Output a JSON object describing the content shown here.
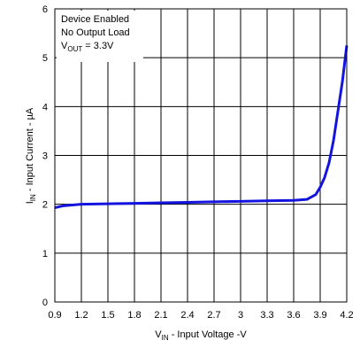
{
  "chart_data": {
    "type": "line",
    "xlabel": {
      "main": "V",
      "sub": "IN",
      "rest": " - Input Voltage -V"
    },
    "ylabel": {
      "main": "I",
      "sub": "IN",
      "rest": " - Input Current - µA"
    },
    "annotation": {
      "line1": "Device Enabled",
      "line2": "No Output Load",
      "line3": {
        "main": "V",
        "sub": "OUT",
        "rest": " = 3.3V"
      }
    },
    "x": [
      0.9,
      1.0,
      1.2,
      1.5,
      1.8,
      2.1,
      2.4,
      2.7,
      3.0,
      3.3,
      3.6,
      3.75,
      3.85,
      3.9,
      3.95,
      4.0,
      4.05,
      4.1,
      4.15,
      4.2
    ],
    "series": [
      {
        "color": "#1414e0",
        "values": [
          1.93,
          1.97,
          2.0,
          2.01,
          2.02,
          2.03,
          2.04,
          2.05,
          2.06,
          2.07,
          2.08,
          2.1,
          2.2,
          2.35,
          2.55,
          2.85,
          3.3,
          3.9,
          4.5,
          5.25
        ]
      }
    ],
    "xlim": [
      0.9,
      4.2
    ],
    "xticks": [
      0.9,
      1.2,
      1.5,
      1.8,
      2.1,
      2.4,
      2.7,
      3,
      3.3,
      3.6,
      3.9,
      4.2
    ],
    "ylim": [
      0,
      6
    ],
    "yticks": [
      0,
      1,
      2,
      3,
      4,
      5,
      6
    ],
    "grid": true
  }
}
